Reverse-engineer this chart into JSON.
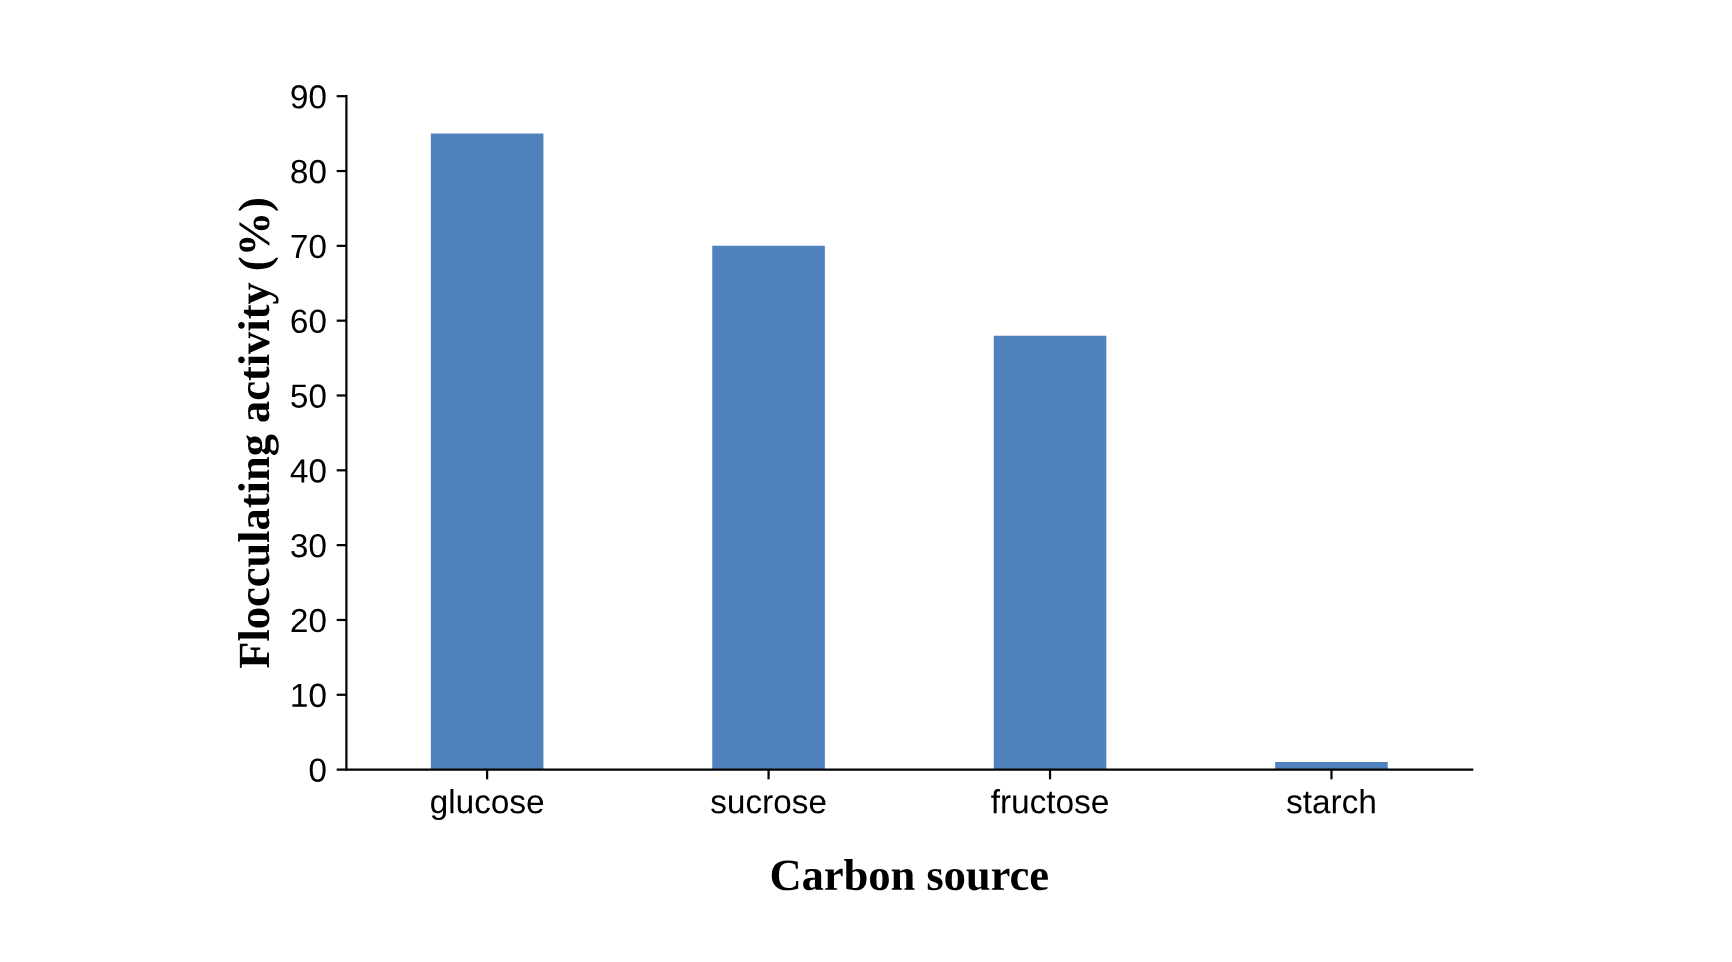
{
  "chart_data": {
    "type": "bar",
    "categories": [
      "glucose",
      "sucrose",
      "fructose",
      "starch"
    ],
    "values": [
      85,
      70,
      58,
      1
    ],
    "color": "#4f81bd",
    "xlabel": "Carbon source",
    "ylabel": "Flocculating activity (%)",
    "ylim": [
      0,
      90
    ],
    "yticks": [
      0,
      10,
      20,
      30,
      40,
      50,
      60,
      70,
      80,
      90
    ],
    "grid": false,
    "legend": false
  }
}
